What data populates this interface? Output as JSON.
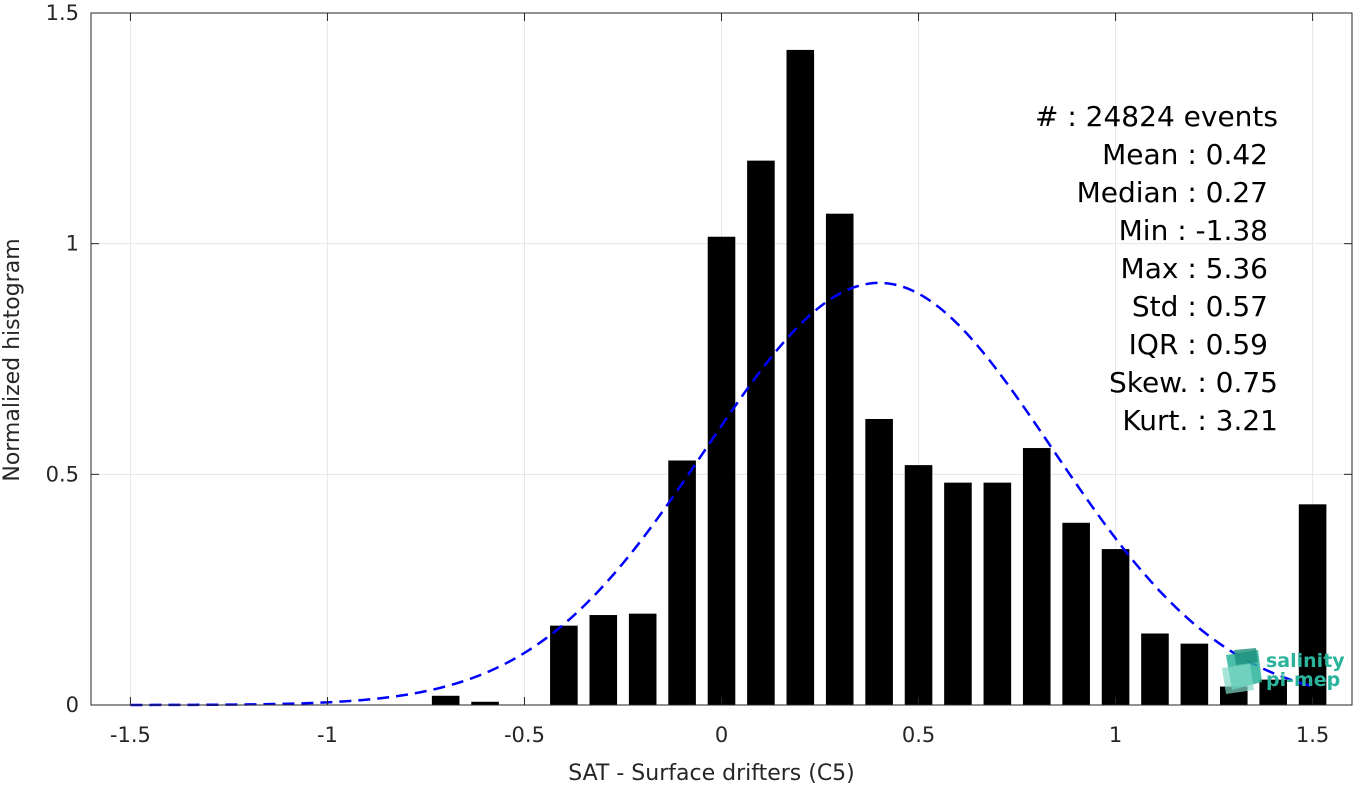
{
  "chart_data": {
    "type": "bar",
    "xlabel": "SAT - Surface drifters (C5)",
    "ylabel": "Normalized histogram",
    "xlim": [
      -1.6,
      1.6
    ],
    "ylim": [
      0,
      1.5
    ],
    "xticks": [
      "-1.5",
      "-1",
      "-0.5",
      "0",
      "0.5",
      "1",
      "1.5"
    ],
    "yticks": [
      "0",
      "0.5",
      "1",
      "1.5"
    ],
    "grid": true,
    "bar_color": "#000000",
    "bins": {
      "centers": [
        -0.7,
        -0.6,
        -0.5,
        -0.4,
        -0.3,
        -0.2,
        -0.1,
        0.0,
        0.1,
        0.2,
        0.3,
        0.4,
        0.5,
        0.6,
        0.7,
        0.8,
        0.9,
        1.0,
        1.1,
        1.2,
        1.3,
        1.4,
        1.5
      ],
      "values": [
        0.02,
        0.007,
        0.0,
        0.172,
        0.195,
        0.198,
        0.53,
        1.015,
        1.18,
        1.42,
        1.065,
        0.62,
        0.52,
        0.482,
        0.482,
        0.557,
        0.395,
        0.338,
        0.155,
        0.133,
        0.04,
        0.055,
        0.435
      ]
    },
    "fit_curve": {
      "style": "dashed",
      "color": "#0000ff",
      "distribution": "normal",
      "mean": 0.4,
      "std": 0.44,
      "peak": 0.915,
      "x_range": [
        -1.5,
        1.5
      ]
    },
    "stats": [
      {
        "label": "#  : 24824 events",
        "ref": "stats_events"
      },
      {
        "label": "Mean : 0.42"
      },
      {
        "label": "Median : 0.27"
      },
      {
        "label": "Min : -1.38"
      },
      {
        "label": "Max : 5.36"
      },
      {
        "label": "Std : 0.57"
      },
      {
        "label": "IQR : 0.59"
      },
      {
        "label": "Skew. : 0.75"
      },
      {
        "label": "Kurt. : 3.21"
      }
    ]
  },
  "logo": {
    "line1": "salinity",
    "line2": "pi-mep",
    "color": "#2bb39b"
  }
}
